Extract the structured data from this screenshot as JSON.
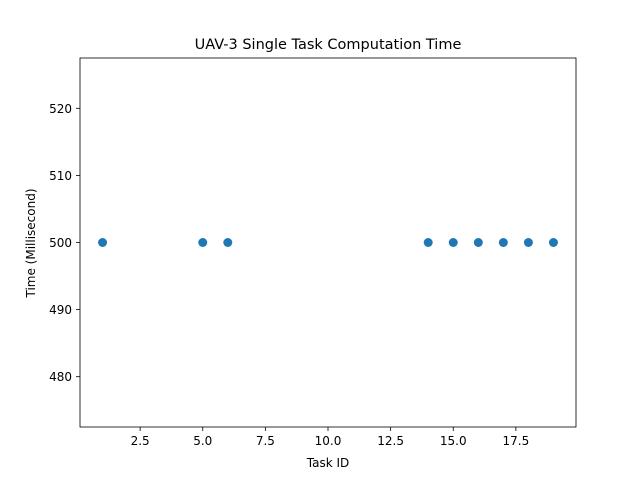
{
  "chart_data": {
    "type": "scatter",
    "title": "UAV-3 Single Task Computation Time",
    "xlabel": "Task ID",
    "ylabel": "Time (Millisecond)",
    "xlim": [
      0.1,
      19.9
    ],
    "ylim": [
      472.5,
      527.5
    ],
    "x_ticks": [
      2.5,
      5.0,
      7.5,
      10.0,
      12.5,
      15.0,
      17.5
    ],
    "x_tick_labels": [
      "2.5",
      "5.0",
      "7.5",
      "10.0",
      "12.5",
      "15.0",
      "17.5"
    ],
    "y_ticks": [
      480,
      490,
      500,
      510,
      520
    ],
    "y_tick_labels": [
      "480",
      "490",
      "500",
      "510",
      "520"
    ],
    "grid": false,
    "marker_color": "#1f77b4",
    "series": [
      {
        "x": [
          1,
          5,
          6,
          14,
          15,
          16,
          17,
          18,
          19
        ],
        "y": [
          500,
          500,
          500,
          500,
          500,
          500,
          500,
          500,
          500
        ]
      }
    ]
  }
}
